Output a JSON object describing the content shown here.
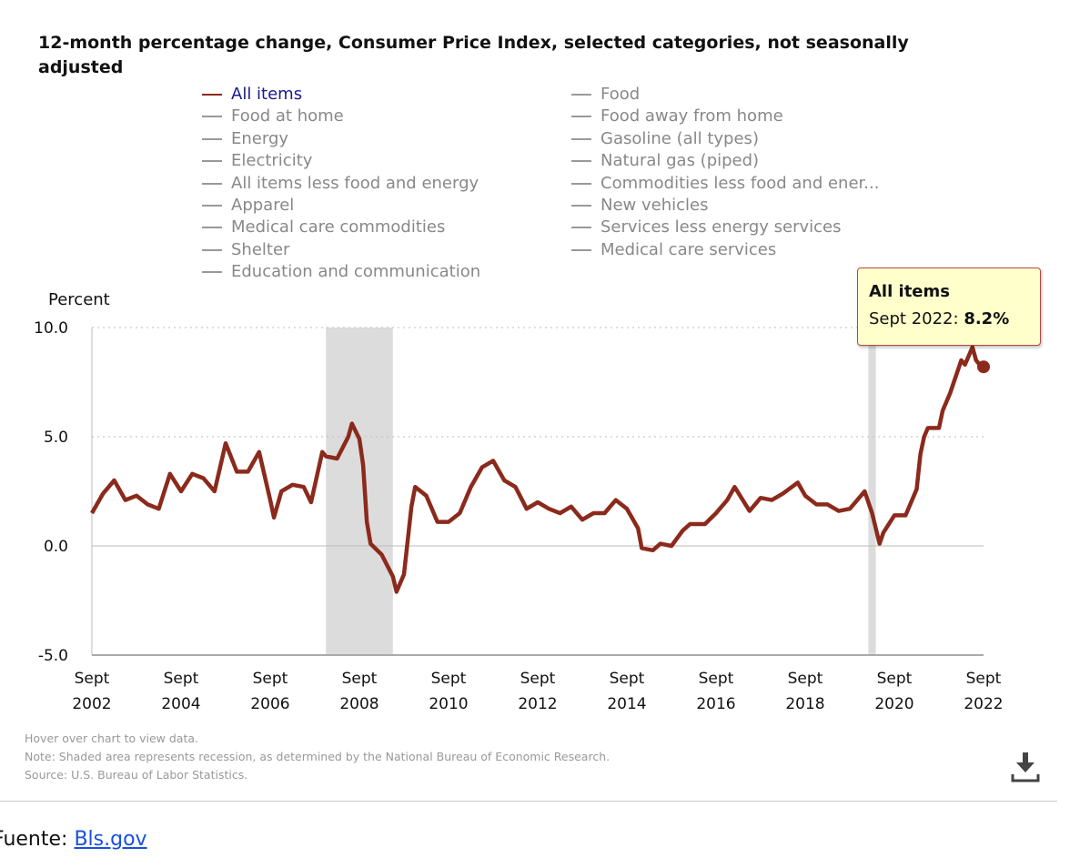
{
  "chart_data": {
    "type": "line",
    "title": "12-month percentage change, Consumer Price Index, selected categories, not seasonally adjusted",
    "ylabel": "Percent",
    "ylim": [
      -5,
      10
    ],
    "xlim": [
      "2002-09",
      "2022-09"
    ],
    "grid": true,
    "legend_placement": "top",
    "yticks": [
      "10.0",
      "5.0",
      "0.0",
      "-5.0"
    ],
    "xticks": [
      {
        "date": "2002-09",
        "l1": "Sept",
        "l2": "2002"
      },
      {
        "date": "2004-09",
        "l1": "Sept",
        "l2": "2004"
      },
      {
        "date": "2006-09",
        "l1": "Sept",
        "l2": "2006"
      },
      {
        "date": "2008-09",
        "l1": "Sept",
        "l2": "2008"
      },
      {
        "date": "2010-09",
        "l1": "Sept",
        "l2": "2010"
      },
      {
        "date": "2012-09",
        "l1": "Sept",
        "l2": "2012"
      },
      {
        "date": "2014-09",
        "l1": "Sept",
        "l2": "2014"
      },
      {
        "date": "2016-09",
        "l1": "Sept",
        "l2": "2016"
      },
      {
        "date": "2018-09",
        "l1": "Sept",
        "l2": "2018"
      },
      {
        "date": "2020-09",
        "l1": "Sept",
        "l2": "2020"
      },
      {
        "date": "2022-09",
        "l1": "Sept",
        "l2": "2022"
      }
    ],
    "recessions": [
      [
        "2007-12",
        "2009-06"
      ],
      [
        "2020-02",
        "2020-04"
      ]
    ],
    "series": [
      {
        "name": "All items",
        "color": "#8b2a1c",
        "points": [
          [
            "2002-09",
            1.5
          ],
          [
            "2002-12",
            2.4
          ],
          [
            "2003-03",
            3.0
          ],
          [
            "2003-06",
            2.1
          ],
          [
            "2003-09",
            2.3
          ],
          [
            "2003-12",
            1.9
          ],
          [
            "2004-03",
            1.7
          ],
          [
            "2004-06",
            3.3
          ],
          [
            "2004-09",
            2.5
          ],
          [
            "2004-12",
            3.3
          ],
          [
            "2005-03",
            3.1
          ],
          [
            "2005-06",
            2.5
          ],
          [
            "2005-09",
            4.7
          ],
          [
            "2005-12",
            3.4
          ],
          [
            "2006-03",
            3.4
          ],
          [
            "2006-06",
            4.3
          ],
          [
            "2006-09",
            2.1
          ],
          [
            "2006-10",
            1.3
          ],
          [
            "2006-12",
            2.5
          ],
          [
            "2007-03",
            2.8
          ],
          [
            "2007-06",
            2.7
          ],
          [
            "2007-08",
            2.0
          ],
          [
            "2007-11",
            4.3
          ],
          [
            "2007-12",
            4.1
          ],
          [
            "2008-03",
            4.0
          ],
          [
            "2008-06",
            5.0
          ],
          [
            "2008-07",
            5.6
          ],
          [
            "2008-09",
            4.9
          ],
          [
            "2008-10",
            3.7
          ],
          [
            "2008-11",
            1.1
          ],
          [
            "2008-12",
            0.1
          ],
          [
            "2009-03",
            -0.4
          ],
          [
            "2009-06",
            -1.4
          ],
          [
            "2009-07",
            -2.1
          ],
          [
            "2009-09",
            -1.3
          ],
          [
            "2009-11",
            1.8
          ],
          [
            "2009-12",
            2.7
          ],
          [
            "2010-03",
            2.3
          ],
          [
            "2010-06",
            1.1
          ],
          [
            "2010-09",
            1.1
          ],
          [
            "2010-12",
            1.5
          ],
          [
            "2011-03",
            2.7
          ],
          [
            "2011-06",
            3.6
          ],
          [
            "2011-09",
            3.9
          ],
          [
            "2011-12",
            3.0
          ],
          [
            "2012-03",
            2.7
          ],
          [
            "2012-06",
            1.7
          ],
          [
            "2012-09",
            2.0
          ],
          [
            "2012-12",
            1.7
          ],
          [
            "2013-03",
            1.5
          ],
          [
            "2013-06",
            1.8
          ],
          [
            "2013-09",
            1.2
          ],
          [
            "2013-12",
            1.5
          ],
          [
            "2014-03",
            1.5
          ],
          [
            "2014-06",
            2.1
          ],
          [
            "2014-09",
            1.7
          ],
          [
            "2014-12",
            0.8
          ],
          [
            "2015-01",
            -0.1
          ],
          [
            "2015-04",
            -0.2
          ],
          [
            "2015-06",
            0.1
          ],
          [
            "2015-09",
            0.0
          ],
          [
            "2015-12",
            0.7
          ],
          [
            "2016-02",
            1.0
          ],
          [
            "2016-06",
            1.0
          ],
          [
            "2016-09",
            1.5
          ],
          [
            "2016-12",
            2.1
          ],
          [
            "2017-02",
            2.7
          ],
          [
            "2017-06",
            1.6
          ],
          [
            "2017-09",
            2.2
          ],
          [
            "2017-12",
            2.1
          ],
          [
            "2018-03",
            2.4
          ],
          [
            "2018-07",
            2.9
          ],
          [
            "2018-09",
            2.3
          ],
          [
            "2018-12",
            1.9
          ],
          [
            "2019-03",
            1.9
          ],
          [
            "2019-06",
            1.6
          ],
          [
            "2019-09",
            1.7
          ],
          [
            "2019-12",
            2.3
          ],
          [
            "2020-01",
            2.5
          ],
          [
            "2020-03",
            1.5
          ],
          [
            "2020-05",
            0.1
          ],
          [
            "2020-06",
            0.6
          ],
          [
            "2020-09",
            1.4
          ],
          [
            "2020-12",
            1.4
          ],
          [
            "2021-03",
            2.6
          ],
          [
            "2021-04",
            4.2
          ],
          [
            "2021-05",
            5.0
          ],
          [
            "2021-06",
            5.4
          ],
          [
            "2021-09",
            5.4
          ],
          [
            "2021-10",
            6.2
          ],
          [
            "2021-12",
            7.0
          ],
          [
            "2022-03",
            8.5
          ],
          [
            "2022-04",
            8.3
          ],
          [
            "2022-06",
            9.1
          ],
          [
            "2022-07",
            8.5
          ],
          [
            "2022-08",
            8.3
          ],
          [
            "2022-09",
            8.2
          ]
        ]
      }
    ],
    "tooltip": {
      "title": "All items",
      "label": "Sept 2022:",
      "value": "8.2%"
    }
  },
  "legend": [
    "All items",
    "Food",
    "Food at home",
    "Food away from home",
    "Energy",
    "Gasoline (all types)",
    "Electricity",
    "Natural gas (piped)",
    "All items less food and energy",
    "Commodities less food and ener...",
    "Apparel",
    "New vehicles",
    "Medical care commodities",
    "Services less energy services",
    "Shelter",
    "Medical care services",
    "Education and communication"
  ],
  "notes": {
    "hover": "Hover over chart to view data.",
    "note": "Note: Shaded area represents recession, as determined by the National Bureau of Economic Research.",
    "source": "Source: U.S. Bureau of Labor Statistics."
  },
  "download_icon": "download-icon",
  "footer": {
    "prefix": "Fuente:",
    "link": "Bls.gov"
  }
}
